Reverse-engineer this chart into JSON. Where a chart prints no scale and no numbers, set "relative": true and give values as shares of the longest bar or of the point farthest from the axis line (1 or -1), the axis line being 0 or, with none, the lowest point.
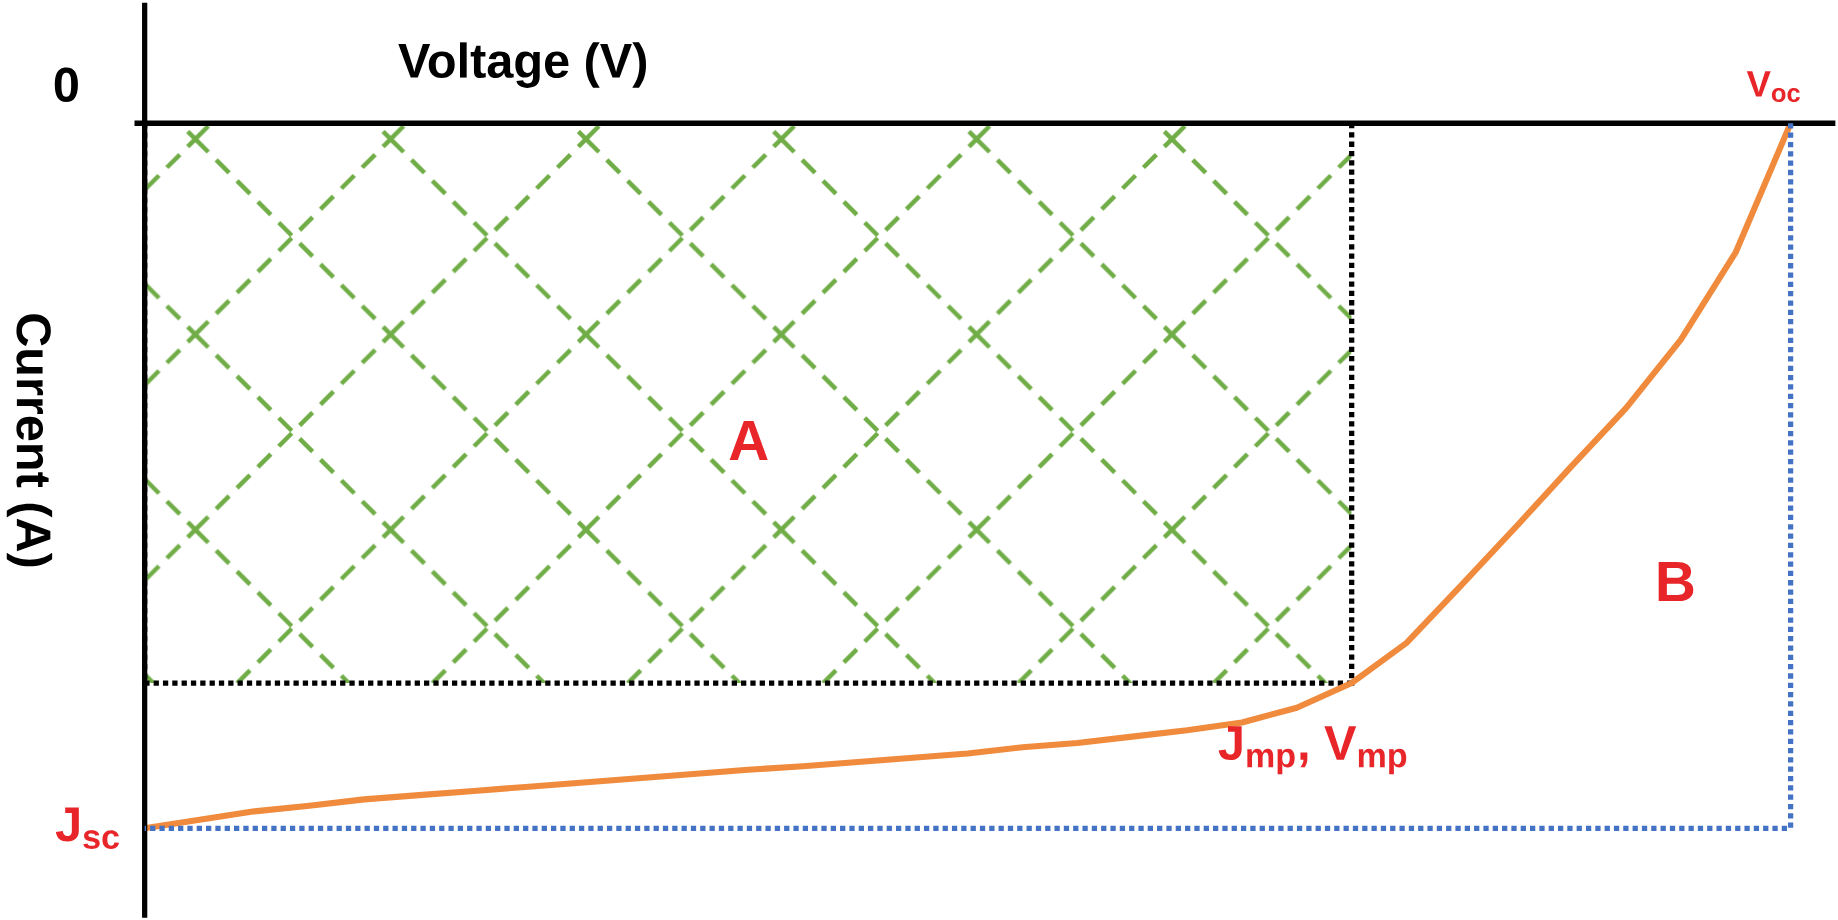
{
  "chart_data": {
    "type": "line",
    "relative": true,
    "xlabel": "Voltage (V)",
    "ylabel": "Current (A)",
    "categories": [
      null,
      null,
      null,
      null,
      null,
      null,
      null,
      null,
      null,
      null,
      null,
      null,
      null,
      null,
      null,
      null,
      null,
      null,
      null,
      null,
      null,
      null,
      null,
      null,
      null,
      null,
      null,
      null,
      null,
      null,
      null
    ],
    "series": [
      {
        "color": "#f08a3c",
        "line_style": "solid",
        "values": [
          -1,
          -0.988,
          -0.976,
          -0.968,
          -0.959,
          -0.953,
          -0.947,
          -0.941,
          -0.935,
          -0.929,
          -0.923,
          -0.917,
          -0.912,
          -0.906,
          -0.9,
          -0.894,
          -0.885,
          -0.879,
          -0.87,
          -0.861,
          -0.85,
          -0.829,
          -0.794,
          -0.737,
          -0.655,
          -0.572,
          -0.487,
          -0.404,
          -0.307,
          -0.183,
          0
        ]
      },
      {
        "type": "area",
        "color": "#70ad47",
        "line_style": "dotted",
        "values": [
          -0.794,
          -0.794,
          -0.794,
          -0.794,
          -0.794,
          -0.794,
          -0.794,
          -0.794,
          -0.794,
          -0.794,
          -0.794,
          -0.794,
          -0.794,
          -0.794,
          -0.794,
          -0.794,
          -0.794,
          -0.794,
          -0.794,
          -0.794,
          -0.794,
          -0.794,
          -0.794,
          null,
          null,
          null,
          null,
          null,
          null,
          null,
          null
        ]
      }
    ],
    "annotations": [
      "0",
      "J$_{sc}$",
      "V$_{oc}$",
      "J$_{mp}$, V$_{mp}$",
      "A",
      "B"
    ]
  }
}
